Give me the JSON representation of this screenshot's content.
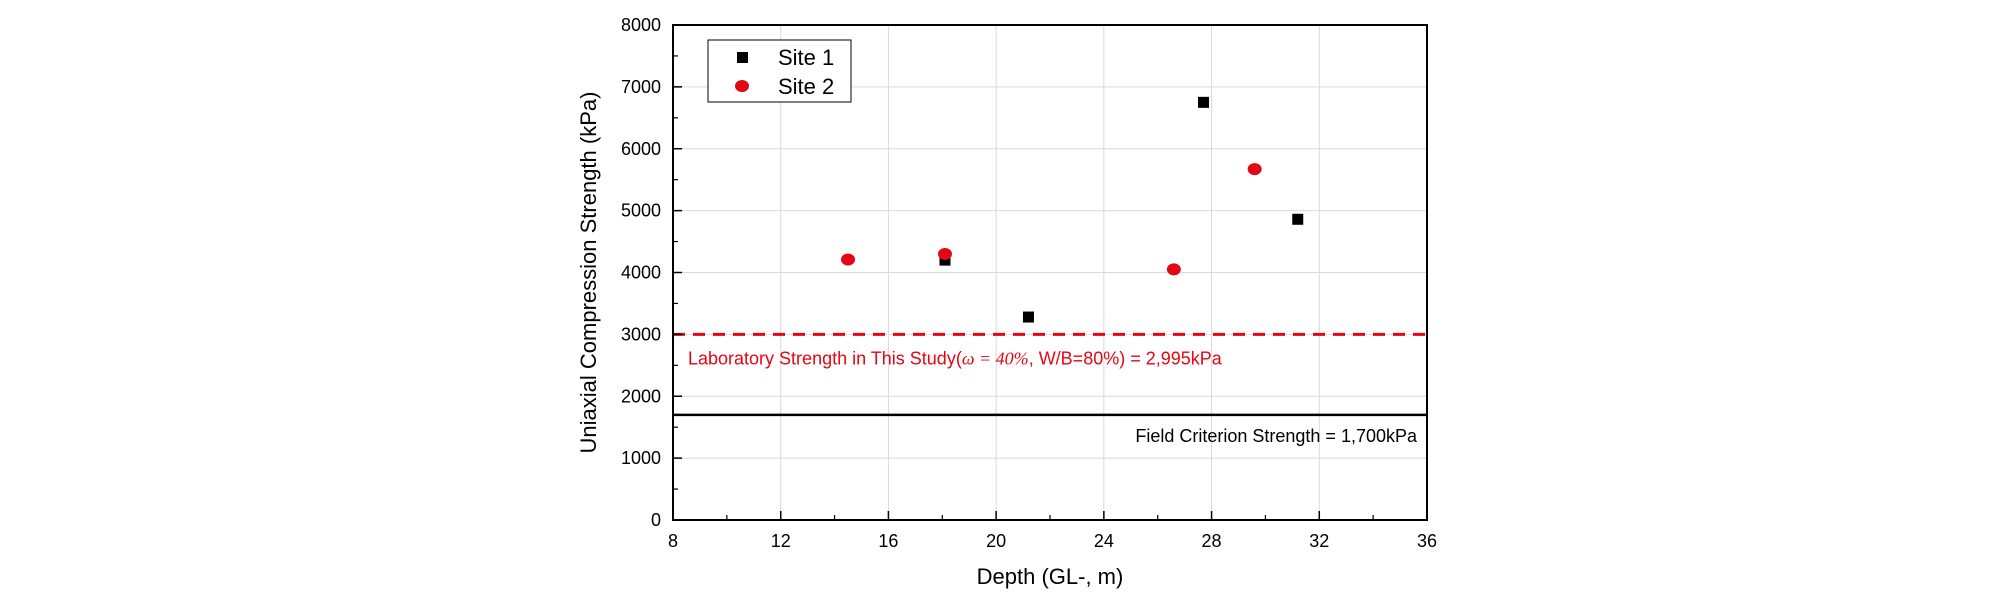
{
  "chart_data": {
    "type": "scatter",
    "title": "",
    "xlabel": "Depth (GL-, m)",
    "ylabel": "Uniaxial Compression Strength (kPa)",
    "xlim": [
      8,
      36
    ],
    "ylim": [
      0,
      8000
    ],
    "xticks": [
      8,
      12,
      16,
      20,
      24,
      28,
      32,
      36
    ],
    "yticks": [
      0,
      1000,
      2000,
      3000,
      4000,
      5000,
      6000,
      7000,
      8000
    ],
    "grid": true,
    "legend_position": "top-left",
    "series": [
      {
        "name": "Site 1",
        "marker": "square",
        "color": "#000000",
        "x": [
          18.1,
          21.2,
          27.7,
          31.2
        ],
        "y": [
          4200,
          3280,
          6750,
          4860
        ]
      },
      {
        "name": "Site 2",
        "marker": "circle",
        "color": "#e30613",
        "x": [
          14.5,
          18.1,
          26.6,
          29.6
        ],
        "y": [
          4210,
          4300,
          4050,
          5670
        ]
      }
    ],
    "reference_lines": [
      {
        "name": "laboratory-strength",
        "value": 3000,
        "style": "dashed",
        "color": "#e30613",
        "label_prefix": "Laboratory Strength in This Study(",
        "label_omega": "ω = 40%",
        "label_suffix": ", W/B=80%) = 2,995kPa"
      },
      {
        "name": "field-criterion",
        "value": 1700,
        "style": "solid",
        "color": "#000000",
        "label": "Field Criterion Strength = 1,700kPa"
      }
    ]
  }
}
